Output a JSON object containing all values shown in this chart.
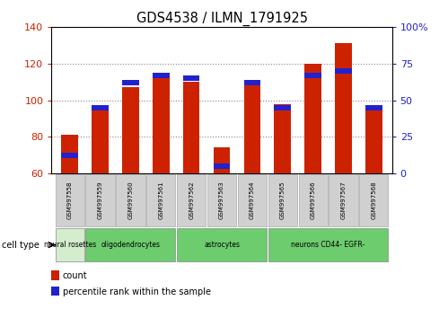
{
  "title": "GDS4538 / ILMN_1791925",
  "samples": [
    "GSM997558",
    "GSM997559",
    "GSM997560",
    "GSM997561",
    "GSM997562",
    "GSM997563",
    "GSM997564",
    "GSM997565",
    "GSM997566",
    "GSM997567",
    "GSM997568"
  ],
  "count_values": [
    81,
    96,
    107,
    114,
    110,
    74,
    109,
    98,
    120,
    131,
    96
  ],
  "percentile_values": [
    12,
    45,
    62,
    67,
    65,
    5,
    62,
    45,
    67,
    70,
    45
  ],
  "ylim_left": [
    60,
    140
  ],
  "ylim_right": [
    0,
    100
  ],
  "yticks_left": [
    60,
    80,
    100,
    120,
    140
  ],
  "yticks_right": [
    0,
    25,
    50,
    75,
    100
  ],
  "cell_groups": [
    {
      "label": "neural rosettes",
      "start": 0,
      "end": 1,
      "color": "#d4edcc"
    },
    {
      "label": "oligodendrocytes",
      "start": 1,
      "end": 4,
      "color": "#6dcc6d"
    },
    {
      "label": "astrocytes",
      "start": 4,
      "end": 7,
      "color": "#6dcc6d"
    },
    {
      "label": "neurons CD44- EGFR-",
      "start": 7,
      "end": 11,
      "color": "#6dcc6d"
    }
  ],
  "bar_color": "#cc2200",
  "percentile_color": "#2222cc",
  "bar_width": 0.55,
  "left_tick_color": "#cc2200",
  "right_tick_color": "#2222cc",
  "sample_box_color": "#d0d0d0",
  "grid_color": "#888888"
}
